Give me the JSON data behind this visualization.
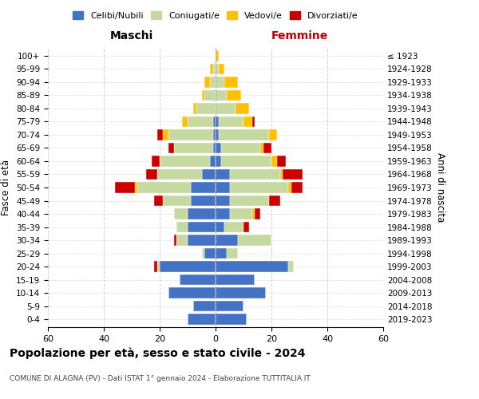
{
  "age_groups": [
    "0-4",
    "5-9",
    "10-14",
    "15-19",
    "20-24",
    "25-29",
    "30-34",
    "35-39",
    "40-44",
    "45-49",
    "50-54",
    "55-59",
    "60-64",
    "65-69",
    "70-74",
    "75-79",
    "80-84",
    "85-89",
    "90-94",
    "95-99",
    "100+"
  ],
  "birth_years": [
    "2019-2023",
    "2014-2018",
    "2009-2013",
    "2004-2008",
    "1999-2003",
    "1994-1998",
    "1989-1993",
    "1984-1988",
    "1979-1983",
    "1974-1978",
    "1969-1973",
    "1964-1968",
    "1959-1963",
    "1954-1958",
    "1949-1953",
    "1944-1948",
    "1939-1943",
    "1934-1938",
    "1929-1933",
    "1924-1928",
    "≤ 1923"
  ],
  "colors": {
    "celibi": "#4472c4",
    "coniugati": "#c5d9a0",
    "vedovi": "#ffc000",
    "divorziati": "#cc0000"
  },
  "maschi": {
    "celibi": [
      10,
      8,
      17,
      13,
      20,
      4,
      10,
      10,
      10,
      9,
      9,
      5,
      2,
      1,
      1,
      1,
      0,
      0,
      0,
      0,
      0
    ],
    "coniugati": [
      0,
      0,
      0,
      0,
      1,
      1,
      4,
      4,
      5,
      10,
      19,
      16,
      18,
      14,
      16,
      9,
      7,
      4,
      2,
      1,
      0
    ],
    "vedovi": [
      0,
      0,
      0,
      0,
      0,
      0,
      0,
      0,
      0,
      0,
      1,
      0,
      0,
      0,
      2,
      2,
      1,
      1,
      2,
      1,
      0
    ],
    "divorziati": [
      0,
      0,
      0,
      0,
      1,
      0,
      1,
      0,
      0,
      3,
      7,
      4,
      3,
      2,
      2,
      0,
      0,
      0,
      0,
      0,
      0
    ]
  },
  "femmine": {
    "celibi": [
      11,
      10,
      18,
      14,
      26,
      4,
      8,
      3,
      5,
      5,
      5,
      5,
      2,
      2,
      1,
      1,
      0,
      0,
      0,
      0,
      0
    ],
    "coniugati": [
      0,
      0,
      0,
      0,
      2,
      4,
      12,
      7,
      8,
      14,
      21,
      18,
      18,
      14,
      18,
      9,
      7,
      4,
      3,
      1,
      0
    ],
    "vedovi": [
      0,
      0,
      0,
      0,
      0,
      0,
      0,
      0,
      1,
      0,
      1,
      1,
      2,
      1,
      3,
      3,
      5,
      5,
      5,
      2,
      1
    ],
    "divorziati": [
      0,
      0,
      0,
      0,
      0,
      0,
      0,
      2,
      2,
      4,
      4,
      7,
      3,
      3,
      0,
      1,
      0,
      0,
      0,
      0,
      0
    ]
  },
  "title": "Popolazione per età, sesso e stato civile - 2024",
  "subtitle": "COMUNE DI ALAGNA (PV) - Dati ISTAT 1° gennaio 2024 - Elaborazione TUTTITALIA.IT",
  "xlabel_left": "Maschi",
  "xlabel_right": "Femmine",
  "ylabel_left": "Fasce di età",
  "ylabel_right": "Anni di nascita",
  "xlim": 60,
  "legend_labels": [
    "Celibi/Nubili",
    "Coniugati/e",
    "Vedovi/e",
    "Divorziati/e"
  ],
  "background_color": "#ffffff",
  "grid_color": "#cccccc"
}
